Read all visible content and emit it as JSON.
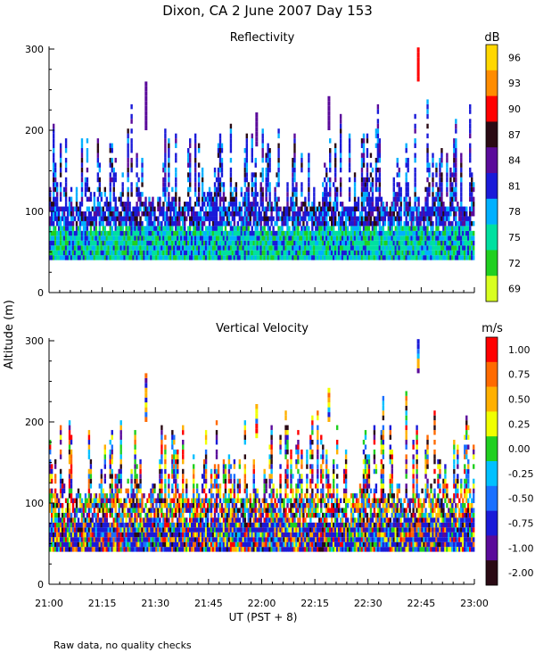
{
  "header": {
    "title": "Dixon, CA  2 June 2007  Day 153",
    "footnote": "Raw data, no quality checks"
  },
  "chart_data": [
    {
      "type": "heatmap",
      "title": "Reflectivity",
      "units": "dB",
      "ylabel": "Altitude (m)",
      "xlabel": "UT  (PST + 8)",
      "xlim": [
        "21:00",
        "23:00"
      ],
      "ylim": [
        0,
        300
      ],
      "x_ticks": [
        "21:00",
        "21:15",
        "21:30",
        "21:45",
        "22:00",
        "22:15",
        "22:30",
        "22:45",
        "23:00"
      ],
      "y_ticks": [
        "0",
        "100",
        "200",
        "300"
      ],
      "colorbar": {
        "labels": [
          "96",
          "93",
          "90",
          "87",
          "84",
          "81",
          "78",
          "75",
          "72",
          "69"
        ],
        "colors": [
          "#ffd700",
          "#ff8c00",
          "#ff0000",
          "#2a0a14",
          "#5a0a9a",
          "#1a1ad8",
          "#00b0ff",
          "#00e0a0",
          "#20d020",
          "#d8ff20"
        ]
      }
    },
    {
      "type": "heatmap",
      "title": "Vertical Velocity",
      "units": "m/s",
      "ylabel": "Altitude (m)",
      "xlabel": "UT  (PST + 8)",
      "xlim": [
        "21:00",
        "23:00"
      ],
      "ylim": [
        0,
        300
      ],
      "x_ticks": [
        "21:00",
        "21:15",
        "21:30",
        "21:45",
        "22:00",
        "22:15",
        "22:30",
        "22:45",
        "23:00"
      ],
      "y_ticks": [
        "0",
        "100",
        "200",
        "300"
      ],
      "colorbar": {
        "labels": [
          "1.00",
          "0.75",
          "0.50",
          "0.25",
          "0.00",
          "-0.25",
          "-0.50",
          "-0.75",
          "-1.00",
          "-2.00"
        ],
        "colors": [
          "#ff0000",
          "#ff6a00",
          "#ffb000",
          "#f0ff00",
          "#20d020",
          "#00c0ff",
          "#1a70ff",
          "#1a1ad8",
          "#5a0a9a",
          "#2a0a14"
        ]
      }
    }
  ],
  "y_axis_label": "Altitude (m)",
  "x_axis_label": "UT  (PST + 8)"
}
